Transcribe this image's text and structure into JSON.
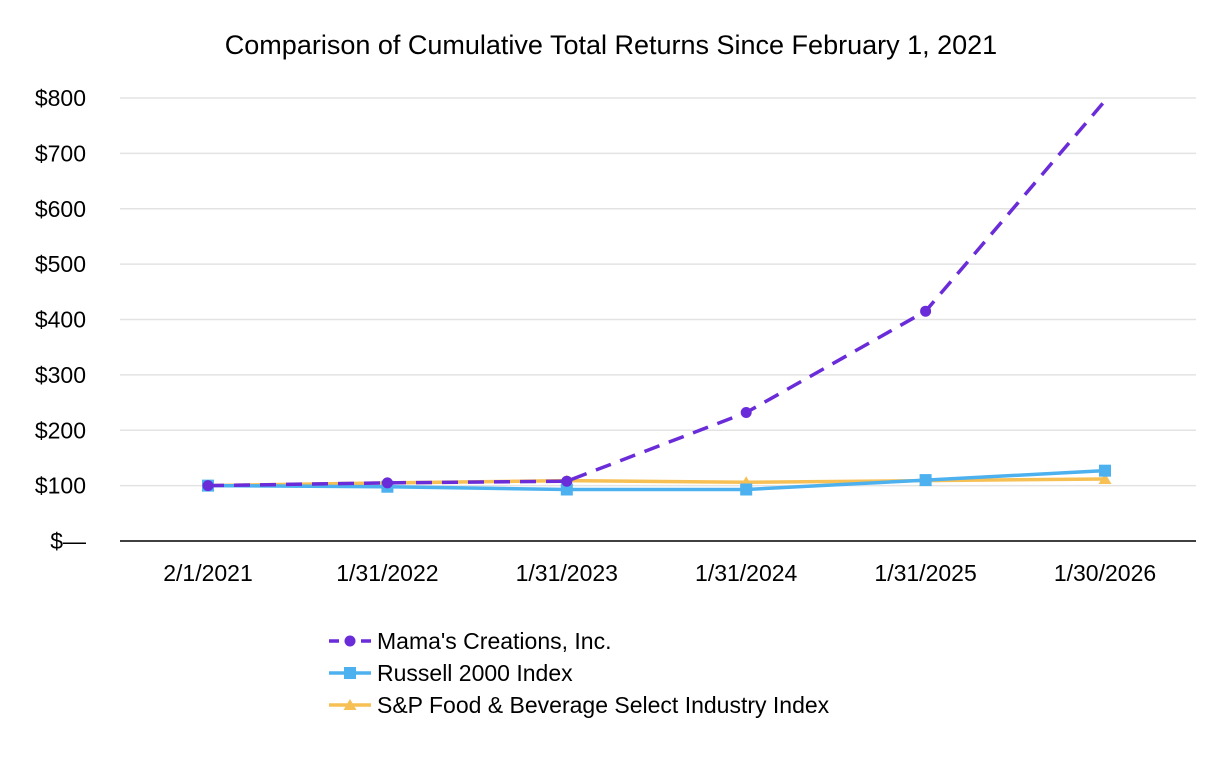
{
  "chart_data": {
    "type": "line",
    "title": "Comparison of Cumulative Total Returns Since February 1, 2021",
    "xlabel": "",
    "ylabel": "",
    "categories": [
      "2/1/2021",
      "1/31/2022",
      "1/31/2023",
      "1/31/2024",
      "1/31/2025",
      "1/30/2026"
    ],
    "y_ticks": [
      {
        "value": 0,
        "label": "$—"
      },
      {
        "value": 100,
        "label": "$100"
      },
      {
        "value": 200,
        "label": "$200"
      },
      {
        "value": 300,
        "label": "$300"
      },
      {
        "value": 400,
        "label": "$400"
      },
      {
        "value": 500,
        "label": "$500"
      },
      {
        "value": 600,
        "label": "$600"
      },
      {
        "value": 700,
        "label": "$700"
      },
      {
        "value": 800,
        "label": "$800"
      }
    ],
    "ylim": [
      0,
      800
    ],
    "grid": true,
    "legend_position": "bottom",
    "series": [
      {
        "name": "Mama's Creations, Inc.",
        "values": [
          100,
          105,
          108,
          232,
          415,
          795
        ],
        "color": "#6A2BD9",
        "dash": true,
        "marker": "circle"
      },
      {
        "name": "Russell 2000 Index",
        "values": [
          100,
          98,
          93,
          93,
          110,
          127
        ],
        "color": "#4DB1EF",
        "dash": false,
        "marker": "square"
      },
      {
        "name": "S&P Food & Beverage Select Industry Index",
        "values": [
          100,
          105,
          109,
          106,
          109,
          112
        ],
        "color": "#F7C055",
        "dash": false,
        "marker": "triangle"
      }
    ]
  }
}
